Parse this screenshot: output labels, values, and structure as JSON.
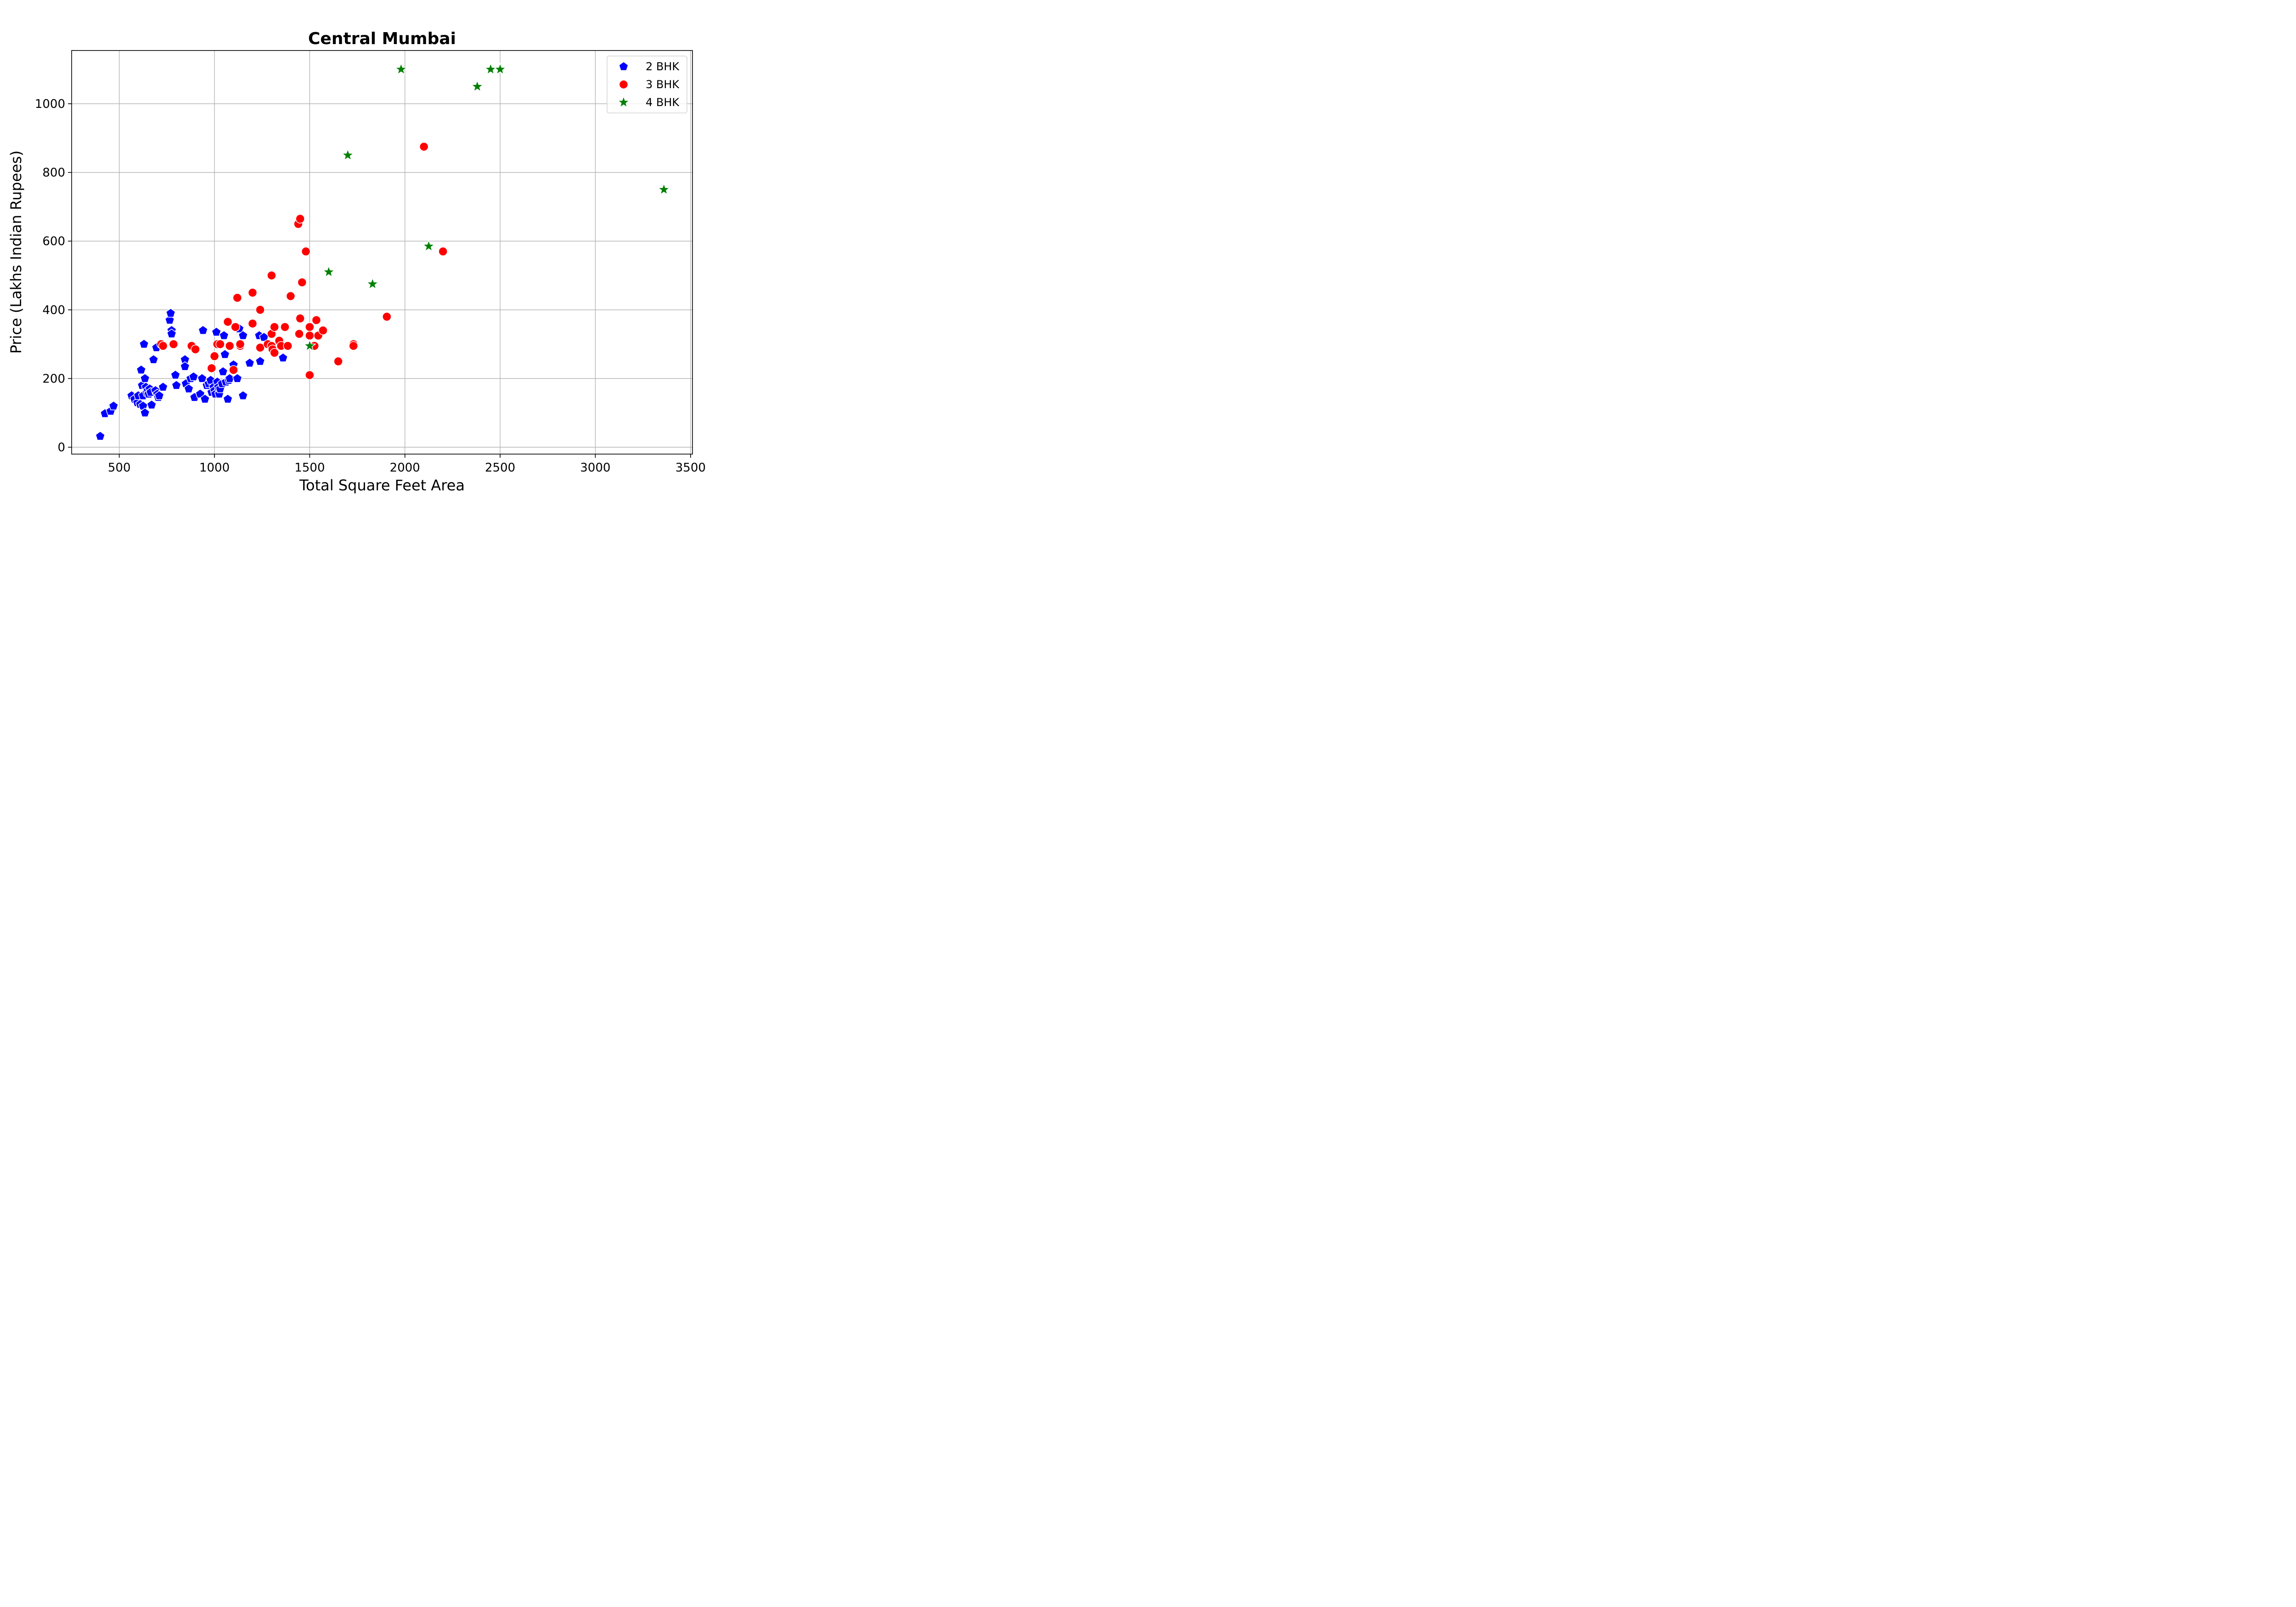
{
  "chart_data": {
    "type": "scatter",
    "title": "Central Mumbai",
    "xlabel": "Total Square Feet Area",
    "ylabel": "Price (Lakhs Indian Rupees)",
    "xlim": [
      250,
      3510
    ],
    "ylim": [
      -20,
      1155
    ],
    "xticks": [
      500,
      1000,
      1500,
      2000,
      2500,
      3000,
      3500
    ],
    "yticks": [
      0,
      200,
      400,
      600,
      800,
      1000
    ],
    "grid": true,
    "legend_position": "top-right",
    "series": [
      {
        "name": "2 BHK",
        "color": "#0000ff",
        "marker": "pentagon",
        "points": [
          [
            400,
            32
          ],
          [
            425,
            98
          ],
          [
            455,
            105
          ],
          [
            470,
            120
          ],
          [
            565,
            150
          ],
          [
            580,
            140
          ],
          [
            595,
            130
          ],
          [
            600,
            150
          ],
          [
            610,
            125
          ],
          [
            615,
            225
          ],
          [
            620,
            180
          ],
          [
            625,
            150
          ],
          [
            625,
            120
          ],
          [
            630,
            300
          ],
          [
            635,
            200
          ],
          [
            635,
            100
          ],
          [
            640,
            175
          ],
          [
            645,
            160
          ],
          [
            650,
            165
          ],
          [
            655,
            155
          ],
          [
            660,
            170
          ],
          [
            665,
            160
          ],
          [
            670,
            123
          ],
          [
            680,
            255
          ],
          [
            690,
            165
          ],
          [
            695,
            290
          ],
          [
            700,
            155
          ],
          [
            705,
            145
          ],
          [
            710,
            150
          ],
          [
            730,
            175
          ],
          [
            765,
            370
          ],
          [
            770,
            390
          ],
          [
            775,
            340
          ],
          [
            775,
            330
          ],
          [
            795,
            210
          ],
          [
            800,
            180
          ],
          [
            845,
            255
          ],
          [
            845,
            235
          ],
          [
            850,
            185
          ],
          [
            865,
            170
          ],
          [
            875,
            200
          ],
          [
            890,
            205
          ],
          [
            895,
            145
          ],
          [
            925,
            155
          ],
          [
            935,
            200
          ],
          [
            940,
            340
          ],
          [
            950,
            140
          ],
          [
            960,
            180
          ],
          [
            970,
            185
          ],
          [
            980,
            195
          ],
          [
            985,
            160
          ],
          [
            995,
            175
          ],
          [
            1000,
            165
          ],
          [
            1005,
            155
          ],
          [
            1010,
            335
          ],
          [
            1015,
            190
          ],
          [
            1020,
            175
          ],
          [
            1025,
            155
          ],
          [
            1030,
            170
          ],
          [
            1040,
            185
          ],
          [
            1045,
            220
          ],
          [
            1050,
            325
          ],
          [
            1055,
            270
          ],
          [
            1060,
            190
          ],
          [
            1070,
            140
          ],
          [
            1075,
            195
          ],
          [
            1080,
            200
          ],
          [
            1100,
            240
          ],
          [
            1120,
            200
          ],
          [
            1130,
            345
          ],
          [
            1150,
            325
          ],
          [
            1150,
            150
          ],
          [
            1185,
            245
          ],
          [
            1235,
            325
          ],
          [
            1240,
            250
          ],
          [
            1260,
            320
          ],
          [
            1360,
            260
          ]
        ]
      },
      {
        "name": "3 BHK",
        "color": "#ff0000",
        "marker": "circle",
        "points": [
          [
            720,
            300
          ],
          [
            730,
            295
          ],
          [
            785,
            300
          ],
          [
            880,
            295
          ],
          [
            900,
            285
          ],
          [
            985,
            230
          ],
          [
            1000,
            265
          ],
          [
            1015,
            300
          ],
          [
            1030,
            300
          ],
          [
            1070,
            365
          ],
          [
            1080,
            295
          ],
          [
            1100,
            225
          ],
          [
            1110,
            350
          ],
          [
            1120,
            435
          ],
          [
            1135,
            295
          ],
          [
            1135,
            300
          ],
          [
            1200,
            450
          ],
          [
            1200,
            360
          ],
          [
            1240,
            400
          ],
          [
            1240,
            290
          ],
          [
            1280,
            300
          ],
          [
            1300,
            500
          ],
          [
            1300,
            330
          ],
          [
            1300,
            295
          ],
          [
            1305,
            285
          ],
          [
            1315,
            350
          ],
          [
            1315,
            275
          ],
          [
            1340,
            310
          ],
          [
            1350,
            295
          ],
          [
            1370,
            350
          ],
          [
            1385,
            295
          ],
          [
            1400,
            440
          ],
          [
            1440,
            650
          ],
          [
            1445,
            330
          ],
          [
            1450,
            665
          ],
          [
            1450,
            375
          ],
          [
            1460,
            480
          ],
          [
            1480,
            570
          ],
          [
            1500,
            210
          ],
          [
            1500,
            350
          ],
          [
            1500,
            325
          ],
          [
            1525,
            295
          ],
          [
            1535,
            370
          ],
          [
            1545,
            325
          ],
          [
            1570,
            340
          ],
          [
            1650,
            250
          ],
          [
            1730,
            300
          ],
          [
            1730,
            295
          ],
          [
            1905,
            380
          ],
          [
            2100,
            875
          ],
          [
            2200,
            570
          ]
        ]
      },
      {
        "name": "4 BHK",
        "color": "#008000",
        "marker": "star",
        "points": [
          [
            1500,
            295
          ],
          [
            1600,
            510
          ],
          [
            1700,
            850
          ],
          [
            1830,
            475
          ],
          [
            1980,
            1100
          ],
          [
            2125,
            585
          ],
          [
            2380,
            1050
          ],
          [
            2450,
            1100
          ],
          [
            2500,
            1100
          ],
          [
            3360,
            750
          ]
        ]
      }
    ]
  }
}
